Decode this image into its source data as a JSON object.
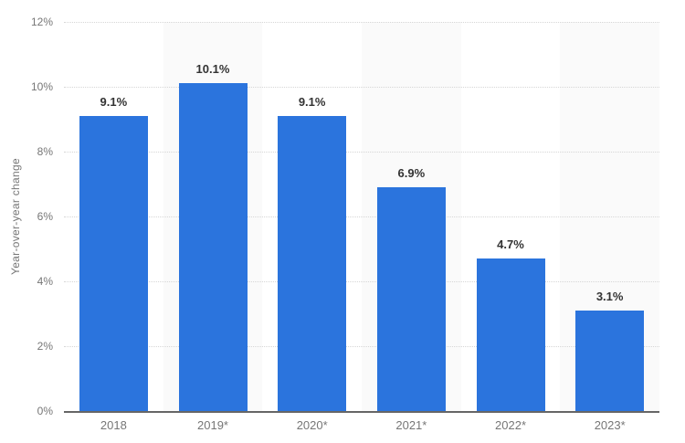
{
  "chart_data": {
    "type": "bar",
    "title": "",
    "xlabel": "",
    "ylabel": "Year-over-year change",
    "categories": [
      "2018",
      "2019*",
      "2020*",
      "2021*",
      "2022*",
      "2023*"
    ],
    "values": [
      9.1,
      10.1,
      9.1,
      6.9,
      4.7,
      3.1
    ],
    "value_labels": [
      "9.1%",
      "10.1%",
      "9.1%",
      "6.9%",
      "4.7%",
      "3.1%"
    ],
    "ylim": [
      0,
      12
    ],
    "ytick_step": 2,
    "ytick_labels": [
      "0%",
      "2%",
      "4%",
      "6%",
      "8%",
      "10%",
      "12%"
    ],
    "grid": "horizontal-dotted",
    "legend": "none",
    "stripe_pattern": "alternating columns, gray on 2019*/2021*/2023*",
    "colors": {
      "bar": "#2b74dd",
      "stripe": "#fafafa",
      "gridline": "#d6d6d6",
      "axis_line": "#666666",
      "tick_text": "#767676",
      "value_text": "#333333",
      "background": "#ffffff"
    }
  }
}
